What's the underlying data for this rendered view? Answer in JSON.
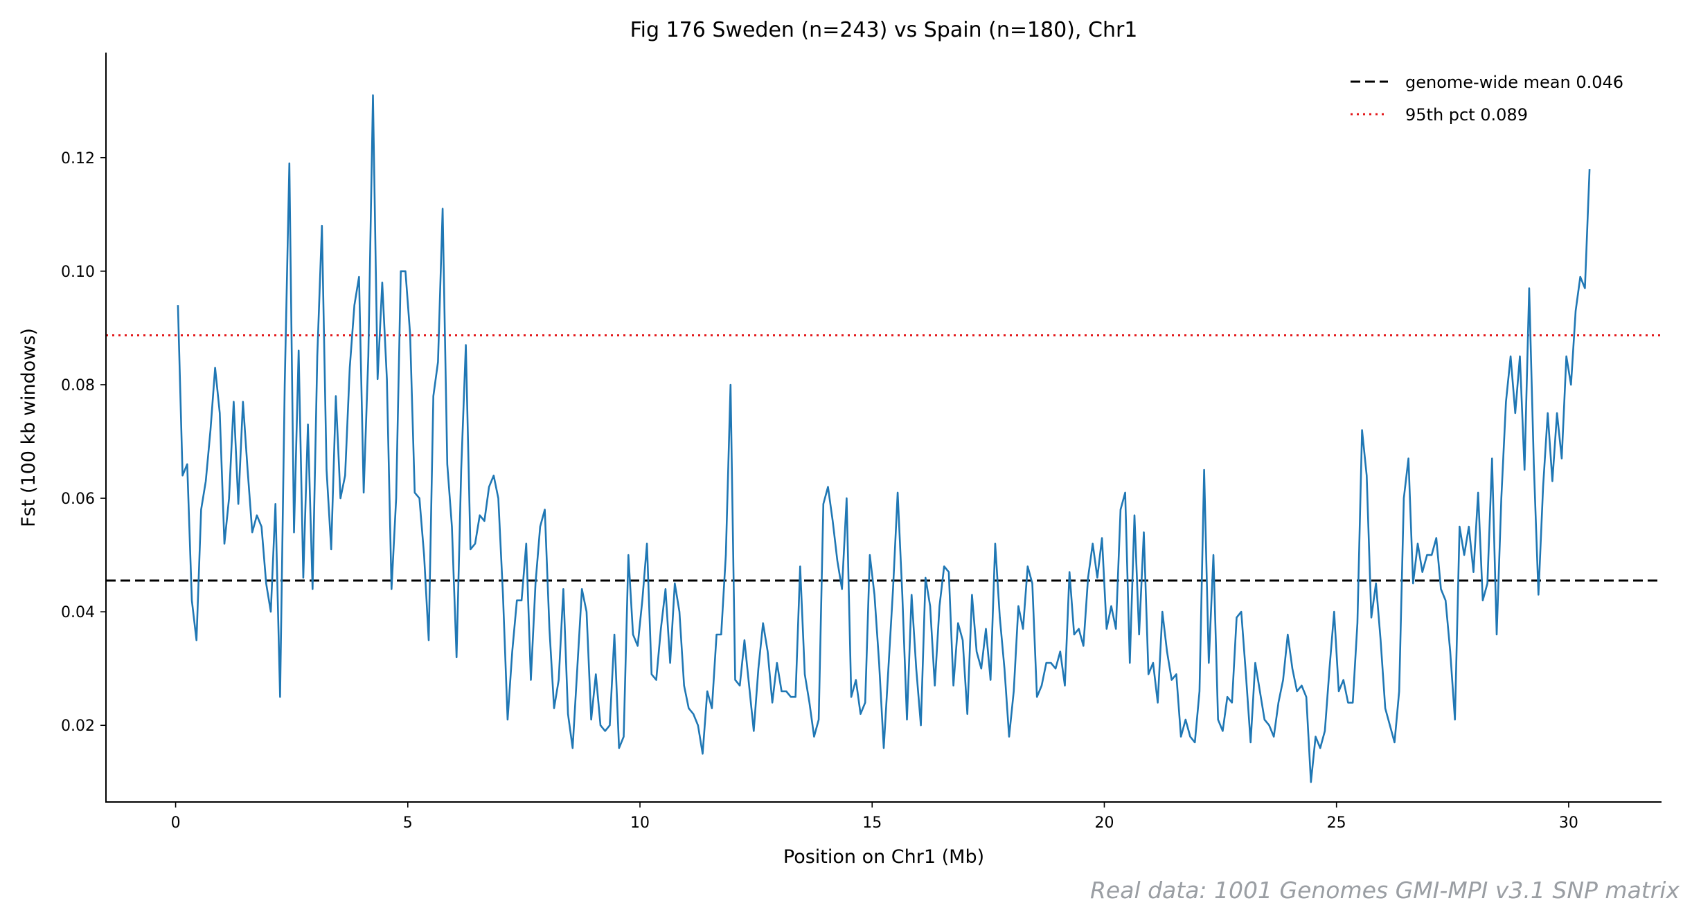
{
  "chart_data": {
    "type": "line",
    "title": "Fig 176  Sweden (n=243) vs Spain (n=180), Chr1",
    "xlabel": "Position on Chr1 (Mb)",
    "ylabel": "Fst (100 kb windows)",
    "xlim": [
      -1.5,
      32
    ],
    "ylim": [
      0.0065,
      0.1385
    ],
    "xticks": [
      0,
      5,
      10,
      15,
      20,
      25,
      30
    ],
    "yticks": [
      0.02,
      0.04,
      0.06,
      0.08,
      0.1,
      0.12
    ],
    "ytick_labels": [
      "0.02",
      "0.04",
      "0.06",
      "0.08",
      "0.10",
      "0.12"
    ],
    "grid": false,
    "legend_position": "top-right",
    "colors": {
      "series": "#1f77b4",
      "mean": "#000000",
      "pct95": "#e31a1c"
    },
    "series": [
      {
        "x_start": 0.05,
        "x_step": 0.1,
        "values": [
          0.094,
          0.064,
          0.066,
          0.042,
          0.035,
          0.058,
          0.063,
          0.072,
          0.083,
          0.075,
          0.052,
          0.06,
          0.077,
          0.059,
          0.077,
          0.065,
          0.054,
          0.057,
          0.055,
          0.045,
          0.04,
          0.059,
          0.025,
          0.08,
          0.119,
          0.054,
          0.086,
          0.046,
          0.073,
          0.044,
          0.085,
          0.108,
          0.065,
          0.051,
          0.078,
          0.06,
          0.064,
          0.083,
          0.094,
          0.099,
          0.061,
          0.085,
          0.131,
          0.081,
          0.098,
          0.081,
          0.044,
          0.06,
          0.1,
          0.1,
          0.089,
          0.061,
          0.06,
          0.05,
          0.035,
          0.078,
          0.084,
          0.111,
          0.066,
          0.055,
          0.032,
          0.065,
          0.087,
          0.051,
          0.052,
          0.057,
          0.056,
          0.062,
          0.064,
          0.06,
          0.043,
          0.021,
          0.033,
          0.042,
          0.042,
          0.052,
          0.028,
          0.045,
          0.055,
          0.058,
          0.037,
          0.023,
          0.028,
          0.044,
          0.022,
          0.016,
          0.03,
          0.044,
          0.04,
          0.021,
          0.029,
          0.02,
          0.019,
          0.02,
          0.036,
          0.016,
          0.018,
          0.05,
          0.036,
          0.034,
          0.042,
          0.052,
          0.029,
          0.028,
          0.037,
          0.044,
          0.031,
          0.045,
          0.04,
          0.027,
          0.023,
          0.022,
          0.02,
          0.015,
          0.026,
          0.023,
          0.036,
          0.036,
          0.05,
          0.08,
          0.028,
          0.027,
          0.035,
          0.027,
          0.019,
          0.03,
          0.038,
          0.033,
          0.024,
          0.031,
          0.026,
          0.026,
          0.025,
          0.025,
          0.048,
          0.029,
          0.024,
          0.018,
          0.021,
          0.059,
          0.062,
          0.056,
          0.049,
          0.044,
          0.06,
          0.025,
          0.028,
          0.022,
          0.024,
          0.05,
          0.043,
          0.031,
          0.016,
          0.03,
          0.044,
          0.061,
          0.043,
          0.021,
          0.043,
          0.03,
          0.02,
          0.046,
          0.041,
          0.027,
          0.041,
          0.048,
          0.047,
          0.027,
          0.038,
          0.035,
          0.022,
          0.043,
          0.033,
          0.03,
          0.037,
          0.028,
          0.052,
          0.039,
          0.03,
          0.018,
          0.026,
          0.041,
          0.037,
          0.048,
          0.045,
          0.025,
          0.027,
          0.031,
          0.031,
          0.03,
          0.033,
          0.027,
          0.047,
          0.036,
          0.037,
          0.034,
          0.046,
          0.052,
          0.046,
          0.053,
          0.037,
          0.041,
          0.037,
          0.058,
          0.061,
          0.031,
          0.057,
          0.036,
          0.054,
          0.029,
          0.031,
          0.024,
          0.04,
          0.033,
          0.028,
          0.029,
          0.018,
          0.021,
          0.018,
          0.017,
          0.026,
          0.065,
          0.031,
          0.05,
          0.021,
          0.019,
          0.025,
          0.024,
          0.039,
          0.04,
          0.029,
          0.017,
          0.031,
          0.026,
          0.021,
          0.02,
          0.018,
          0.024,
          0.028,
          0.036,
          0.03,
          0.026,
          0.027,
          0.025,
          0.01,
          0.018,
          0.016,
          0.019,
          0.03,
          0.04,
          0.026,
          0.028,
          0.024,
          0.024,
          0.038,
          0.072,
          0.064,
          0.039,
          0.045,
          0.035,
          0.023,
          0.02,
          0.017,
          0.026,
          0.06,
          0.067,
          0.045,
          0.052,
          0.047,
          0.05,
          0.05,
          0.053,
          0.044,
          0.042,
          0.033,
          0.021,
          0.055,
          0.05,
          0.055,
          0.047,
          0.061,
          0.042,
          0.045,
          0.067,
          0.036,
          0.06,
          0.077,
          0.085,
          0.075,
          0.085,
          0.065,
          0.097,
          0.066,
          0.043,
          0.062,
          0.075,
          0.063,
          0.075,
          0.067,
          0.085,
          0.08,
          0.093,
          0.099,
          0.097,
          0.118
        ]
      }
    ],
    "reference_lines": [
      {
        "label": "genome-wide mean 0.046",
        "y": 0.0455,
        "style": "dashed",
        "color": "#000000"
      },
      {
        "label": "95th pct 0.089",
        "y": 0.0887,
        "style": "dotted",
        "color": "#e31a1c"
      }
    ]
  },
  "footer": {
    "credit": "Real data: 1001 Genomes GMI-MPI v3.1 SNP matrix"
  }
}
